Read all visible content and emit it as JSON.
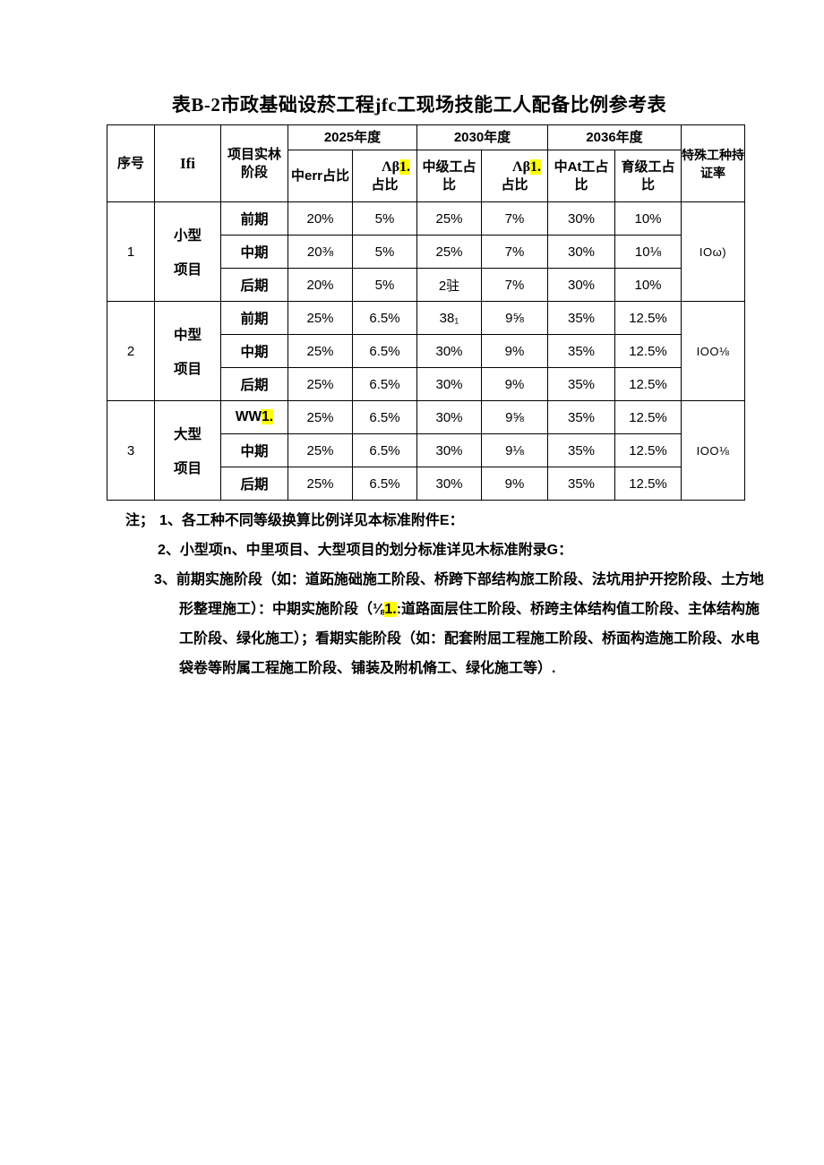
{
  "colors": {
    "highlight": "#ffff00",
    "text": "#000000"
  },
  "title": "表B-2市政基础设菸工程jfc工现场技能工人配备比例参考表",
  "table": {
    "header": {
      "seq": "序号",
      "project": "Ifi",
      "stage_line1": "项目实林",
      "stage_line2": "阶段",
      "year2025": "2025年度",
      "year2030": "2030年度",
      "year2036": "2036年度",
      "junior2025": "中err占比",
      "ab2025": [
        {
          "text": "Λβ",
          "hl": false
        },
        {
          "text": "1.",
          "hl": true
        }
      ],
      "ab2025_line2": "占比",
      "mid2030_line1": "中级工占",
      "mid2030_line2": "比",
      "ab2030": [
        {
          "text": "Λβ",
          "hl": false
        },
        {
          "text": "1.",
          "hl": true
        }
      ],
      "ab2030_line2": "占比",
      "mid2036_line1": "中At工占",
      "mid2036_line2": "比",
      "senior2036_line1": "育级工占",
      "senior2036_line2": "比",
      "special_line1": "特殊工种持",
      "special_line2": "证率"
    },
    "groups": [
      {
        "seq": "1",
        "project_line1": "小型",
        "project_line2": "项目",
        "special": "IOω)",
        "rows": [
          {
            "stage": [
              {
                "text": "前期"
              }
            ],
            "values": [
              "20%",
              "5%",
              "25%",
              "7%",
              "30%",
              "10%"
            ]
          },
          {
            "stage": [
              {
                "text": "中期"
              }
            ],
            "values": [
              "20⅜",
              "5%",
              "25%",
              "7%",
              "30%",
              "10⅛"
            ]
          },
          {
            "stage": [
              {
                "text": "后期"
              }
            ],
            "values": [
              "20%",
              "5%",
              "2驻",
              "7%",
              "30%",
              "10%"
            ]
          }
        ]
      },
      {
        "seq": "2",
        "project_line1": "中型",
        "project_line2": "项目",
        "special": "IOO⅛",
        "rows": [
          {
            "stage": [
              {
                "text": "前期"
              }
            ],
            "values": [
              "25%",
              "6.5%",
              "38₁",
              "9⅝",
              "35%",
              "12.5%"
            ]
          },
          {
            "stage": [
              {
                "text": "中期"
              }
            ],
            "values": [
              "25%",
              "6.5%",
              "30%",
              "9%",
              "35%",
              "12.5%"
            ]
          },
          {
            "stage": [
              {
                "text": "后期"
              }
            ],
            "values": [
              "25%",
              "6.5%",
              "30%",
              "9%",
              "35%",
              "12.5%"
            ]
          }
        ]
      },
      {
        "seq": "3",
        "project_line1": "大型",
        "project_line2": "项目",
        "special": "IOO⅛",
        "rows": [
          {
            "stage": [
              {
                "text": "WW",
                "hl": false
              },
              {
                "text": "1.",
                "hl": true
              }
            ],
            "values": [
              "25%",
              "6.5%",
              "30%",
              "9⅝",
              "35%",
              "12.5%"
            ]
          },
          {
            "stage": [
              {
                "text": "中期"
              }
            ],
            "values": [
              "25%",
              "6.5%",
              "30%",
              "9⅛",
              "35%",
              "12.5%"
            ]
          },
          {
            "stage": [
              {
                "text": "后期"
              }
            ],
            "values": [
              "25%",
              "6.5%",
              "30%",
              "9%",
              "35%",
              "12.5%"
            ]
          }
        ]
      }
    ]
  },
  "notes": {
    "note1_prefix": "注；",
    "note1": "1、各工种不同等级换算比例详见本标准附件E：",
    "note2": "2、小型项n、中里项目、大型项目的划分标准详见木标准附录G：",
    "note3_lines": [
      [
        {
          "text": "3、前期实施阶段（如：道跖施础施工阶段、桥跨下部结构旅工阶段、法坑用护开挖阶段、土方地"
        }
      ],
      [
        {
          "text": "形整理施工）：中期实施阶段（⅛"
        },
        {
          "text": "1.",
          "hl": true
        },
        {
          "text": ":道路面层住工阶段、桥跨主体结构值工阶段、主体结构施"
        }
      ],
      [
        {
          "text": "工阶段、绿化施工）；看期实能阶段（如：配套附屈工程施工阶段、桥面构造施工阶段、水电"
        }
      ],
      [
        {
          "text": "袋卷等附属工程施工阶段、铺装及附机脩工、绿化施工等）."
        }
      ]
    ]
  }
}
